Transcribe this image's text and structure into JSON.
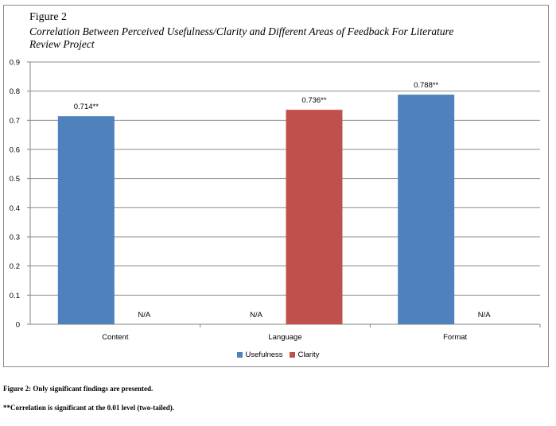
{
  "figure": {
    "heading": "Figure 2",
    "subtitle": "Correlation Between Perceived Usefulness/Clarity and Different Areas of Feedback For Literature Review Project"
  },
  "colors": {
    "usefulness": "#4f81bd",
    "clarity": "#c0504d",
    "gridline": "#8c8c8c",
    "axis": "#808080"
  },
  "chart_data": {
    "type": "bar",
    "categories": [
      "Content",
      "Language",
      "Format"
    ],
    "series": [
      {
        "name": "Usefulness",
        "values": [
          0.714,
          null,
          0.788
        ],
        "labels": [
          "0.714**",
          "N/A",
          "0.788**"
        ]
      },
      {
        "name": "Clarity",
        "values": [
          null,
          0.736,
          null
        ],
        "labels": [
          "N/A",
          "0.736**",
          "N/A"
        ]
      }
    ],
    "ylim": [
      0,
      0.9
    ],
    "yticks": [
      "0",
      "0.1",
      "0.2",
      "0.3",
      "0.4",
      "0.5",
      "0.6",
      "0.7",
      "0.8",
      "0.9"
    ],
    "grid": true,
    "legend_position": "bottom"
  },
  "footnotes": {
    "note1": "Figure 2: Only significant findings are presented.",
    "note2": "**Correlation is significant at the 0.01 level (two-tailed)."
  }
}
